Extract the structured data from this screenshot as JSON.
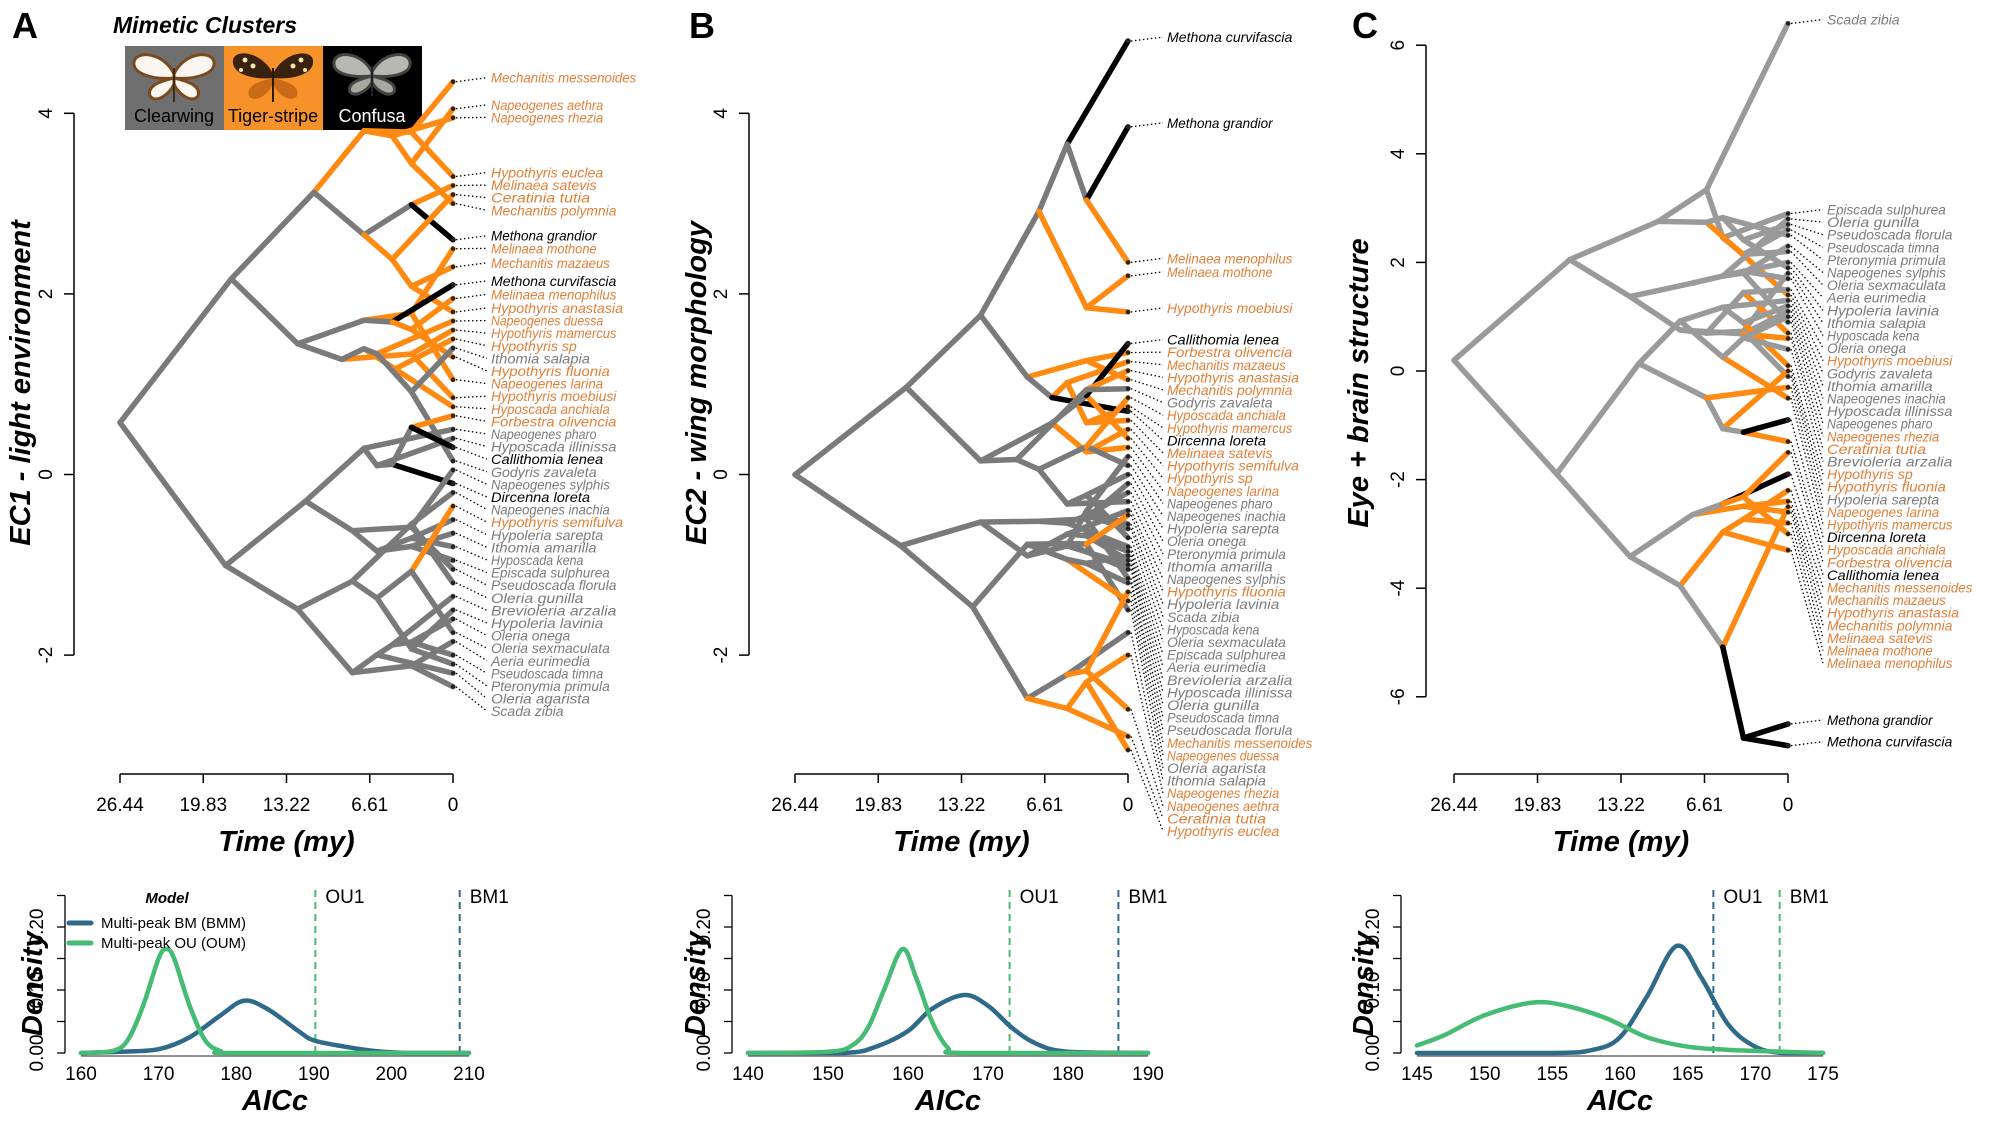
{
  "figure": {
    "panel_labels": [
      "A",
      "B",
      "C"
    ],
    "clusters_title": "Mimetic Clusters",
    "clusters": [
      {
        "name": "Clearwing",
        "background": "#6f6f6f",
        "text_color": "#000000",
        "branch_color": "#7a7a7a",
        "label_color": "#7b7b7b"
      },
      {
        "name": "Tiger-stripe",
        "background": "#f7922a",
        "text_color": "#000000",
        "branch_color": "#ff8a12",
        "label_color": "#e0803a"
      },
      {
        "name": "Confusa",
        "background": "#000000",
        "text_color": "#ffffff",
        "branch_color": "#000000",
        "label_color": "#000000"
      }
    ],
    "species_clusters": {
      "Tiger-stripe": [
        "Mechanitis messenoides",
        "Napeogenes aethra",
        "Napeogenes rhezia",
        "Hypothyris euclea",
        "Melinaea satevis",
        "Ceratinia tutia",
        "Mechanitis polymnia",
        "Melinaea mothone",
        "Mechanitis mazaeus",
        "Melinaea menophilus",
        "Hypothyris anastasia",
        "Napeogenes duessa",
        "Hypothyris mamercus",
        "Hypothyris sp",
        "Hypothyris fluonia",
        "Napeogenes larina",
        "Hypothyris moebiusi",
        "Hyposcada anchiala",
        "Forbestra olivencia",
        "Hypothyris semifulva"
      ],
      "Confusa": [
        "Methona grandior",
        "Methona curvifascia",
        "Callithomia lenea",
        "Dircenna loreta"
      ]
    }
  },
  "chart_data": [
    {
      "panel": "A",
      "type": "traitgram",
      "ylabel": "EC1 - light environment",
      "xlabel": "Time (my)",
      "xticks": [
        "26.44",
        "19.83",
        "13.22",
        "6.61",
        "0"
      ],
      "xlim": [
        26.44,
        0
      ],
      "yticks": [
        "-2",
        "0",
        "2",
        "4"
      ],
      "tips": [
        [
          "Mechanitis messenoides",
          4.35
        ],
        [
          "Napeogenes aethra",
          4.05
        ],
        [
          "Napeogenes rhezia",
          3.95
        ],
        [
          "Hypothyris euclea",
          3.3
        ],
        [
          "Melinaea satevis",
          3.2
        ],
        [
          "Ceratinia tutia",
          3.1
        ],
        [
          "Mechanitis polymnia",
          3.0
        ],
        [
          "Methona grandior",
          2.6
        ],
        [
          "Melinaea mothone",
          2.5
        ],
        [
          "Mechanitis mazaeus",
          2.3
        ],
        [
          "Methona curvifascia",
          2.1
        ],
        [
          "Melinaea menophilus",
          1.95
        ],
        [
          "Hypothyris anastasia",
          1.8
        ],
        [
          "Napeogenes duessa",
          1.7
        ],
        [
          "Hypothyris mamercus",
          1.6
        ],
        [
          "Hypothyris sp",
          1.5
        ],
        [
          "Ithomia salapia",
          1.4
        ],
        [
          "Hypothyris fluonia",
          1.3
        ],
        [
          "Napeogenes larina",
          1.05
        ],
        [
          "Hypothyris moebiusi",
          0.85
        ],
        [
          "Hyposcada anchiala",
          0.75
        ],
        [
          "Forbestra olivencia",
          0.65
        ],
        [
          "Napeogenes pharo",
          0.5
        ],
        [
          "Hyposcada illinissa",
          0.4
        ],
        [
          "Callithomia lenea",
          0.3
        ],
        [
          "Godyris zavaleta",
          0.15
        ],
        [
          "Napeogenes sylphis",
          0.05
        ],
        [
          "Dircenna loreta",
          -0.1
        ],
        [
          "Napeogenes inachia",
          -0.2
        ],
        [
          "Hypothyris semifulva",
          -0.35
        ],
        [
          "Hypoleria sarepta",
          -0.5
        ],
        [
          "Ithomia amarilla",
          -0.65
        ],
        [
          "Hyposcada kena",
          -0.8
        ],
        [
          "Episcada sulphurea",
          -0.95
        ],
        [
          "Pseudoscada florula",
          -1.05
        ],
        [
          "Oleria gunilla",
          -1.2
        ],
        [
          "Brevioleria arzalia",
          -1.35
        ],
        [
          "Hypoleria lavinia",
          -1.5
        ],
        [
          "Oleria onega",
          -1.6
        ],
        [
          "Oleria sexmaculata",
          -1.75
        ],
        [
          "Aeria eurimedia",
          -1.85
        ],
        [
          "Pseudoscada timna",
          -2.0
        ],
        [
          "Pteronymia primula",
          -2.1
        ],
        [
          "Oleria agarista",
          -2.2
        ],
        [
          "Scada zibia",
          -2.35
        ]
      ]
    },
    {
      "panel": "B",
      "type": "traitgram",
      "ylabel": "EC2 - wing morphology",
      "xlabel": "Time (my)",
      "xticks": [
        "26.44",
        "19.83",
        "13.22",
        "6.61",
        "0"
      ],
      "xlim": [
        26.44,
        0
      ],
      "yticks": [
        "-2",
        "0",
        "2",
        "4"
      ],
      "tips": [
        [
          "Methona curvifascia",
          4.8
        ],
        [
          "Methona grandior",
          3.85
        ],
        [
          "Melinaea menophilus",
          2.35
        ],
        [
          "Melinaea mothone",
          2.2
        ],
        [
          "Hypothyris moebiusi",
          1.8
        ],
        [
          "Callithomia lenea",
          1.45
        ],
        [
          "Forbestra olivencia",
          1.35
        ],
        [
          "Mechanitis mazaeus",
          1.25
        ],
        [
          "Hypothyris anastasia",
          1.15
        ],
        [
          "Mechanitis polymnia",
          1.05
        ],
        [
          "Godyris zavaleta",
          0.95
        ],
        [
          "Hyposcada anchiala",
          0.85
        ],
        [
          "Hypothyris mamercus",
          0.75
        ],
        [
          "Dircenna loreta",
          0.7
        ],
        [
          "Melinaea satevis",
          0.6
        ],
        [
          "Hypothyris semifulva",
          0.5
        ],
        [
          "Hypothyris sp",
          0.4
        ],
        [
          "Napeogenes larina",
          0.3
        ],
        [
          "Napeogenes pharo",
          0.2
        ],
        [
          "Napeogenes inachia",
          0.1
        ],
        [
          "Hypoleria sarepta",
          0.0
        ],
        [
          "Oleria onega",
          -0.1
        ],
        [
          "Pteronymia primula",
          -0.2
        ],
        [
          "Ithomia amarilla",
          -0.3
        ],
        [
          "Napeogenes sylphis",
          -0.4
        ],
        [
          "Hypothyris fluonia",
          -0.45
        ],
        [
          "Hypoleria lavinia",
          -0.55
        ],
        [
          "Scada zibia",
          -0.6
        ],
        [
          "Hyposcada kena",
          -0.7
        ],
        [
          "Oleria sexmaculata",
          -0.8
        ],
        [
          "Episcada sulphurea",
          -0.85
        ],
        [
          "Aeria eurimedia",
          -0.9
        ],
        [
          "Brevioleria arzalia",
          -0.95
        ],
        [
          "Hyposcada illinissa",
          -1.0
        ],
        [
          "Oleria gunilla",
          -1.05
        ],
        [
          "Pseudoscada timna",
          -1.15
        ],
        [
          "Pseudoscada florula",
          -1.2
        ],
        [
          "Mechanitis messenoides",
          -1.3
        ],
        [
          "Napeogenes duessa",
          -1.4
        ],
        [
          "Oleria agarista",
          -1.5
        ],
        [
          "Ithomia salapia",
          -1.75
        ],
        [
          "Napeogenes rhezia",
          -2.0
        ],
        [
          "Napeogenes aethra",
          -2.6
        ],
        [
          "Ceratinia tutia",
          -2.9
        ],
        [
          "Hypothyris euclea",
          -3.05
        ]
      ]
    },
    {
      "panel": "C",
      "type": "traitgram",
      "ylabel": "Eye + brain structure",
      "xlabel": "Time (my)",
      "xticks": [
        "26.44",
        "19.83",
        "13.22",
        "6.61",
        "0"
      ],
      "xlim": [
        26.44,
        0
      ],
      "yticks": [
        "-6",
        "-4",
        "-2",
        "0",
        "2",
        "4",
        "6"
      ],
      "tips": [
        [
          "Scada zibia",
          6.4
        ],
        [
          "Episcada sulphurea",
          2.9
        ],
        [
          "Oleria gunilla",
          2.8
        ],
        [
          "Pseudoscada florula",
          2.7
        ],
        [
          "Pseudoscada timna",
          2.6
        ],
        [
          "Pteronymia primula",
          2.5
        ],
        [
          "Napeogenes sylphis",
          2.3
        ],
        [
          "Oleria sexmaculata",
          2.2
        ],
        [
          "Aeria eurimedia",
          2.0
        ],
        [
          "Hypoleria lavinia",
          1.9
        ],
        [
          "Ithomia salapia",
          1.8
        ],
        [
          "Hyposcada kena",
          1.7
        ],
        [
          "Oleria onega",
          1.5
        ],
        [
          "Hypothyris moebiusi",
          1.4
        ],
        [
          "Godyris zavaleta",
          1.3
        ],
        [
          "Ithomia amarilla",
          1.2
        ],
        [
          "Napeogenes inachia",
          1.1
        ],
        [
          "Hyposcada illinissa",
          1.0
        ],
        [
          "Napeogenes pharo",
          0.9
        ],
        [
          "Napeogenes rhezia",
          0.7
        ],
        [
          "Ceratinia tutia",
          0.6
        ],
        [
          "Brevioleria arzalia",
          0.4
        ],
        [
          "Hypothyris sp",
          0.1
        ],
        [
          "Hypothyris fluonia",
          0.0
        ],
        [
          "Hypoleria sarepta",
          -0.1
        ],
        [
          "Napeogenes larina",
          -0.3
        ],
        [
          "Hypothyris mamercus",
          -0.5
        ],
        [
          "Dircenna loreta",
          -0.9
        ],
        [
          "Hyposcada anchiala",
          -1.3
        ],
        [
          "Forbestra olivencia",
          -1.5
        ],
        [
          "Callithomia lenea",
          -1.9
        ],
        [
          "Mechanitis messenoides",
          -2.2
        ],
        [
          "Mechanitis mazaeus",
          -2.4
        ],
        [
          "Hypothyris anastasia",
          -2.5
        ],
        [
          "Mechanitis polymnia",
          -2.6
        ],
        [
          "Melinaea satevis",
          -2.8
        ],
        [
          "Melinaea mothone",
          -3.0
        ],
        [
          "Melinaea menophilus",
          -3.3
        ],
        [
          "Methona grandior",
          -6.5
        ],
        [
          "Methona curvifascia",
          -6.9
        ]
      ]
    },
    {
      "panel": "A",
      "type": "line",
      "xlabel": "AICc",
      "ylabel": "Density",
      "xticks": [
        "160",
        "170",
        "180",
        "190",
        "200",
        "210"
      ],
      "xlim": [
        160,
        210
      ],
      "yticks": [
        "0.00",
        "0.10",
        "0.20"
      ],
      "ylim": [
        0,
        0.25
      ],
      "legend": {
        "title": "Model",
        "position": "top-left"
      },
      "series": [
        {
          "name": "Multi-peak BM (BMM)",
          "color": "#2f6b89",
          "points": [
            [
              160,
              0
            ],
            [
              165,
              0.002
            ],
            [
              170,
              0.006
            ],
            [
              174,
              0.025
            ],
            [
              178,
              0.06
            ],
            [
              181,
              0.083
            ],
            [
              184,
              0.07
            ],
            [
              188,
              0.035
            ],
            [
              190,
              0.02
            ],
            [
              194,
              0.01
            ],
            [
              198,
              0.003
            ],
            [
              202,
              0
            ],
            [
              210,
              0
            ]
          ]
        },
        {
          "name": "Multi-peak OU (OUM)",
          "color": "#45bb73",
          "points": [
            [
              160,
              0
            ],
            [
              164,
              0.003
            ],
            [
              166,
              0.02
            ],
            [
              168,
              0.075
            ],
            [
              170,
              0.15
            ],
            [
              171,
              0.165
            ],
            [
              172,
              0.15
            ],
            [
              174,
              0.075
            ],
            [
              176,
              0.02
            ],
            [
              178,
              0.003
            ],
            [
              180,
              0
            ],
            [
              210,
              0
            ]
          ]
        }
      ],
      "reference_lines": [
        {
          "label": "OU1",
          "x": 190.2,
          "color": "#45bb73"
        },
        {
          "label": "BM1",
          "x": 208.8,
          "color": "#2f6b89"
        }
      ]
    },
    {
      "panel": "B",
      "type": "line",
      "xlabel": "AICc",
      "ylabel": "Density",
      "xticks": [
        "140",
        "150",
        "160",
        "170",
        "180",
        "190"
      ],
      "xlim": [
        140,
        190
      ],
      "yticks": [
        "0.00",
        "0.10",
        "0.20"
      ],
      "ylim": [
        0,
        0.25
      ],
      "series": [
        {
          "color": "#2f6b89",
          "points": [
            [
              140,
              0
            ],
            [
              152,
              0
            ],
            [
              156,
              0.01
            ],
            [
              160,
              0.035
            ],
            [
              163,
              0.07
            ],
            [
              167,
              0.092
            ],
            [
              170,
              0.075
            ],
            [
              173,
              0.04
            ],
            [
              176,
              0.015
            ],
            [
              180,
              0.002
            ],
            [
              190,
              0
            ]
          ]
        },
        {
          "color": "#45bb73",
          "points": [
            [
              140,
              0
            ],
            [
              150,
              0.002
            ],
            [
              153,
              0.012
            ],
            [
              155,
              0.04
            ],
            [
              157,
              0.1
            ],
            [
              159.3,
              0.165
            ],
            [
              161,
              0.12
            ],
            [
              163,
              0.05
            ],
            [
              165,
              0.008
            ],
            [
              167,
              0
            ],
            [
              190,
              0
            ]
          ]
        }
      ],
      "reference_lines": [
        {
          "label": "OU1",
          "x": 172.7,
          "color": "#45bb73"
        },
        {
          "label": "BM1",
          "x": 186.3,
          "color": "#2f6b89"
        }
      ]
    },
    {
      "panel": "C",
      "type": "line",
      "xlabel": "AICc",
      "ylabel": "Density",
      "xticks": [
        "145",
        "150",
        "155",
        "160",
        "165",
        "170",
        "175"
      ],
      "xlim": [
        145,
        175
      ],
      "yticks": [
        "0.00",
        "0.10",
        "0.20"
      ],
      "ylim": [
        0,
        0.25
      ],
      "series": [
        {
          "color": "#2f6b89",
          "points": [
            [
              145,
              0
            ],
            [
              155,
              0
            ],
            [
              158,
              0.005
            ],
            [
              160,
              0.025
            ],
            [
              162,
              0.09
            ],
            [
              164.2,
              0.17
            ],
            [
              166,
              0.12
            ],
            [
              168,
              0.045
            ],
            [
              170,
              0.01
            ],
            [
              172,
              0
            ],
            [
              175,
              0
            ]
          ]
        },
        {
          "color": "#45bb73",
          "points": [
            [
              145,
              0.012
            ],
            [
              147,
              0.028
            ],
            [
              150,
              0.06
            ],
            [
              153.5,
              0.08
            ],
            [
              156,
              0.075
            ],
            [
              159,
              0.055
            ],
            [
              162,
              0.025
            ],
            [
              165,
              0.01
            ],
            [
              168,
              0.005
            ],
            [
              172,
              0.002
            ],
            [
              175,
              0
            ]
          ]
        }
      ],
      "reference_lines": [
        {
          "label": "OU1",
          "x": 166.9,
          "color": "#2f6b89"
        },
        {
          "label": "BM1",
          "x": 171.8,
          "color": "#45bb73"
        }
      ]
    }
  ]
}
